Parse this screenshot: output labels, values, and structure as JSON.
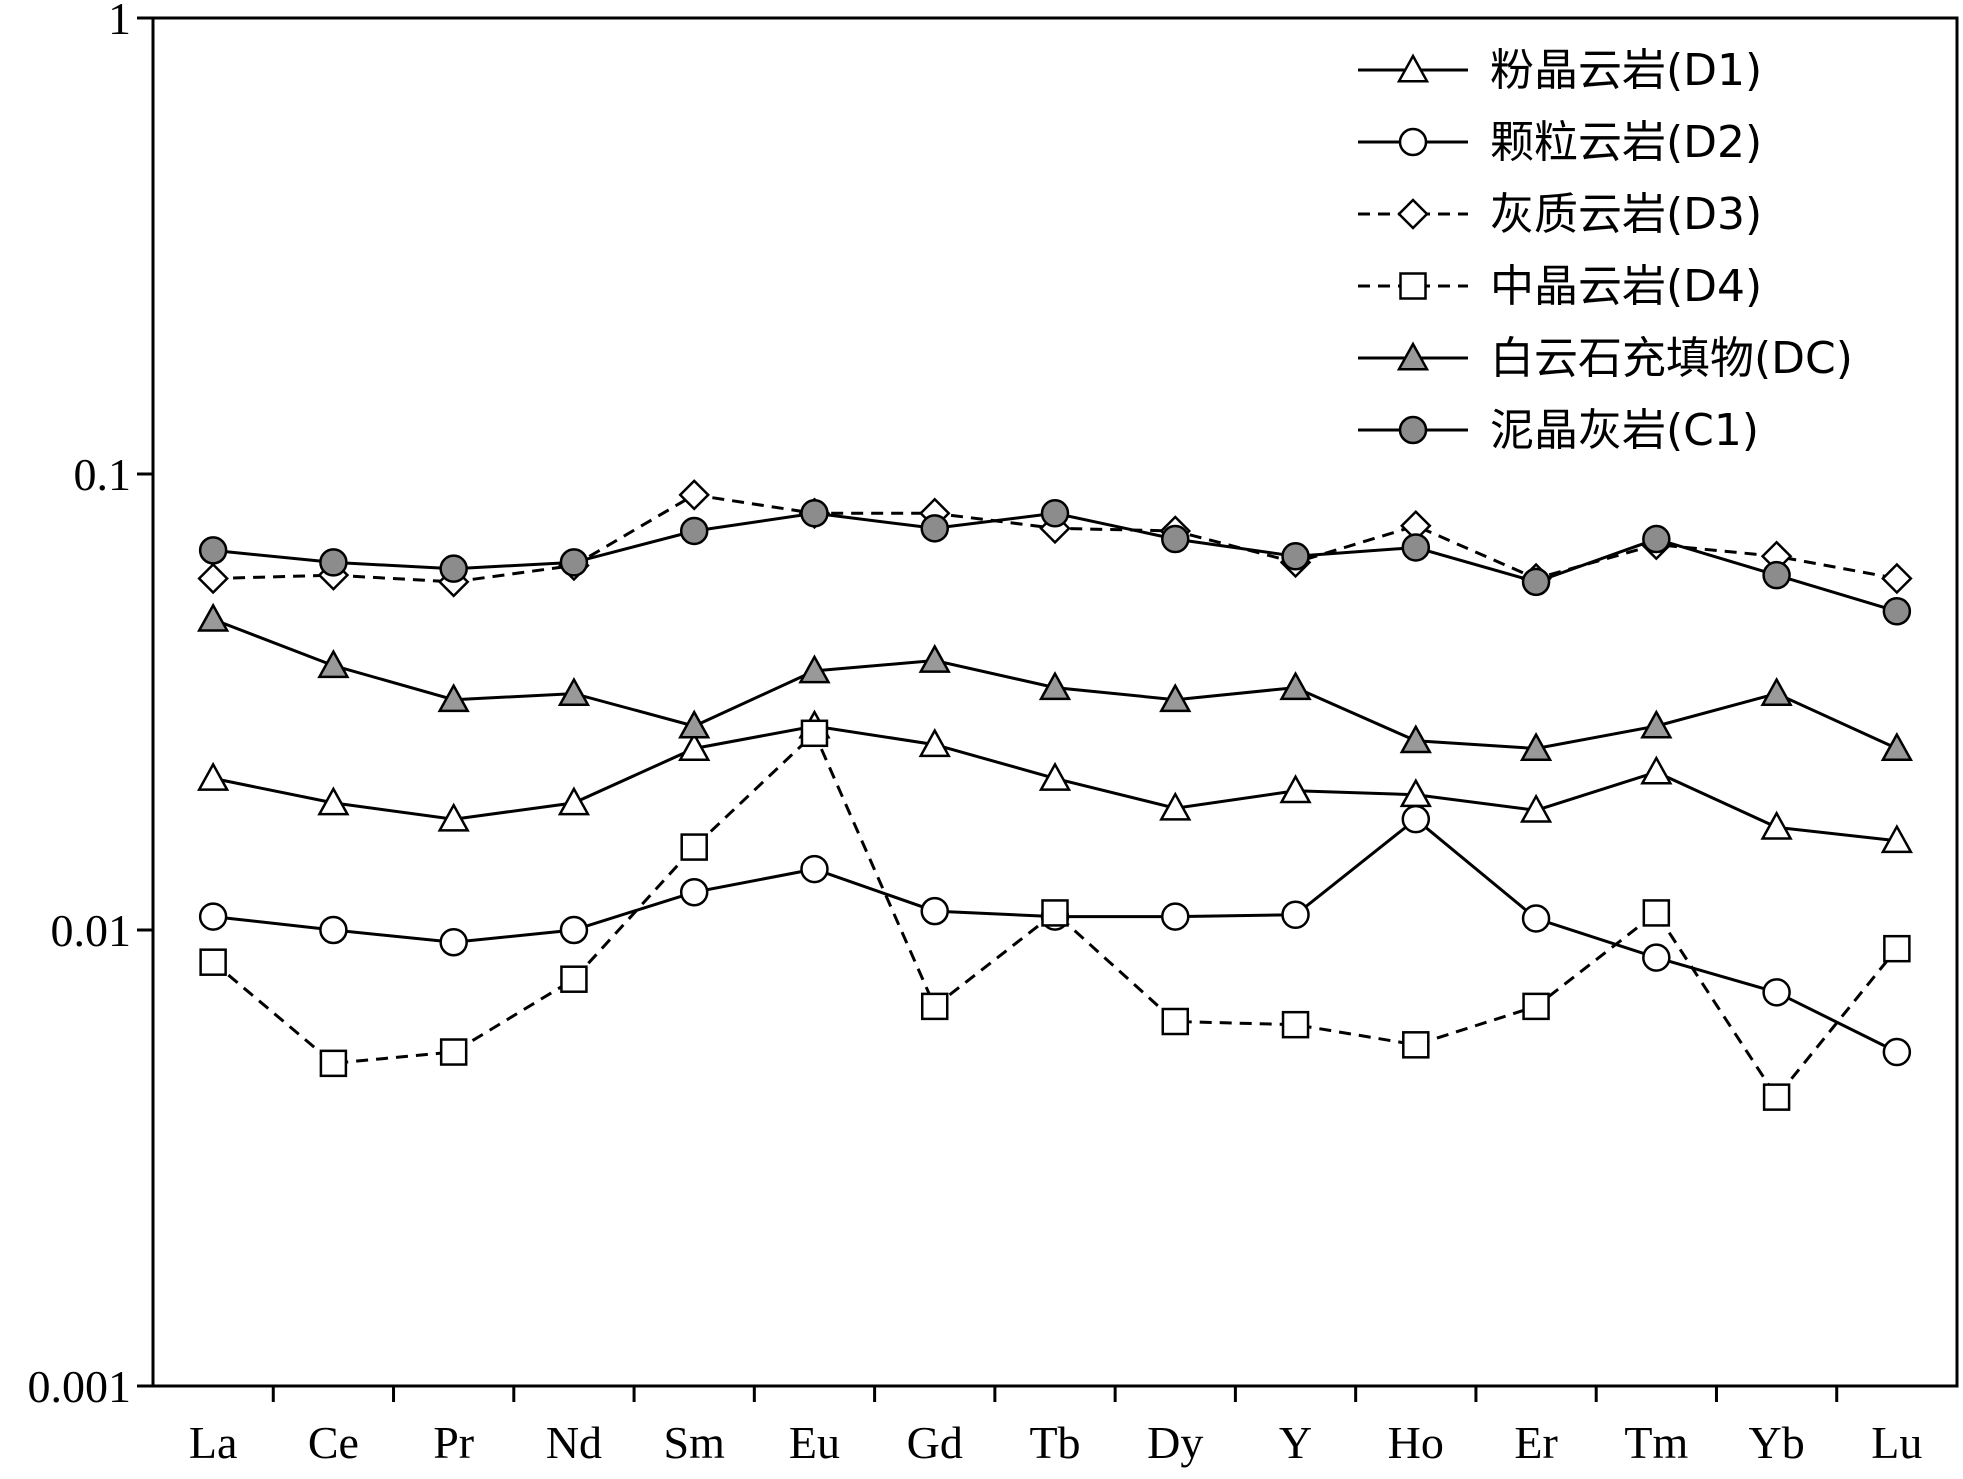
{
  "chart_data": {
    "type": "line",
    "title": "",
    "xlabel": "",
    "ylabel": "",
    "yscale": "log",
    "ylim": [
      0.001,
      1
    ],
    "yticks": [
      "0.001",
      "0.01",
      "0.1",
      "1"
    ],
    "grid": false,
    "legend_position": "top-right",
    "categories": [
      "La",
      "Ce",
      "Pr",
      "Nd",
      "Sm",
      "Eu",
      "Gd",
      "Tb",
      "Dy",
      "Y",
      "Ho",
      "Er",
      "Tm",
      "Yb",
      "Lu"
    ],
    "series": [
      {
        "name": "粉晶云岩(D1)",
        "marker": "triangle",
        "fill": "#ffffff",
        "dashed": false,
        "values": [
          0.0215,
          0.019,
          0.0175,
          0.019,
          0.025,
          0.028,
          0.0255,
          0.0215,
          0.0185,
          0.0202,
          0.0198,
          0.0183,
          0.0222,
          0.0168,
          0.0157
        ]
      },
      {
        "name": "颗粒云岩(D2)",
        "marker": "circle",
        "fill": "#ffffff",
        "dashed": false,
        "values": [
          0.0107,
          0.01,
          0.0094,
          0.01,
          0.0121,
          0.0136,
          0.011,
          0.0107,
          0.0107,
          0.0108,
          0.0175,
          0.0106,
          0.0087,
          0.0073,
          0.0054
        ]
      },
      {
        "name": "灰质云岩(D3)",
        "marker": "diamond",
        "fill": "#ffffff",
        "dashed": true,
        "values": [
          0.059,
          0.06,
          0.058,
          0.063,
          0.09,
          0.082,
          0.082,
          0.076,
          0.075,
          0.064,
          0.077,
          0.059,
          0.07,
          0.066,
          0.059
        ]
      },
      {
        "name": "中晶云岩(D4)",
        "marker": "square",
        "fill": "#ffffff",
        "dashed": true,
        "values": [
          0.0085,
          0.0051,
          0.0054,
          0.0078,
          0.0152,
          0.027,
          0.0068,
          0.0109,
          0.0063,
          0.0062,
          0.0056,
          0.0068,
          0.0109,
          0.0043,
          0.0091
        ]
      },
      {
        "name": "白云石充填物(DC)",
        "marker": "triangle",
        "fill": "#999999",
        "dashed": false,
        "values": [
          0.048,
          0.038,
          0.032,
          0.033,
          0.028,
          0.037,
          0.039,
          0.034,
          0.032,
          0.034,
          0.026,
          0.025,
          0.028,
          0.033,
          0.025
        ]
      },
      {
        "name": "泥晶灰岩(C1)",
        "marker": "circle",
        "fill": "#8c8c8c",
        "dashed": false,
        "values": [
          0.068,
          0.064,
          0.062,
          0.064,
          0.075,
          0.082,
          0.076,
          0.082,
          0.072,
          0.066,
          0.069,
          0.058,
          0.072,
          0.06,
          0.05
        ]
      }
    ]
  }
}
